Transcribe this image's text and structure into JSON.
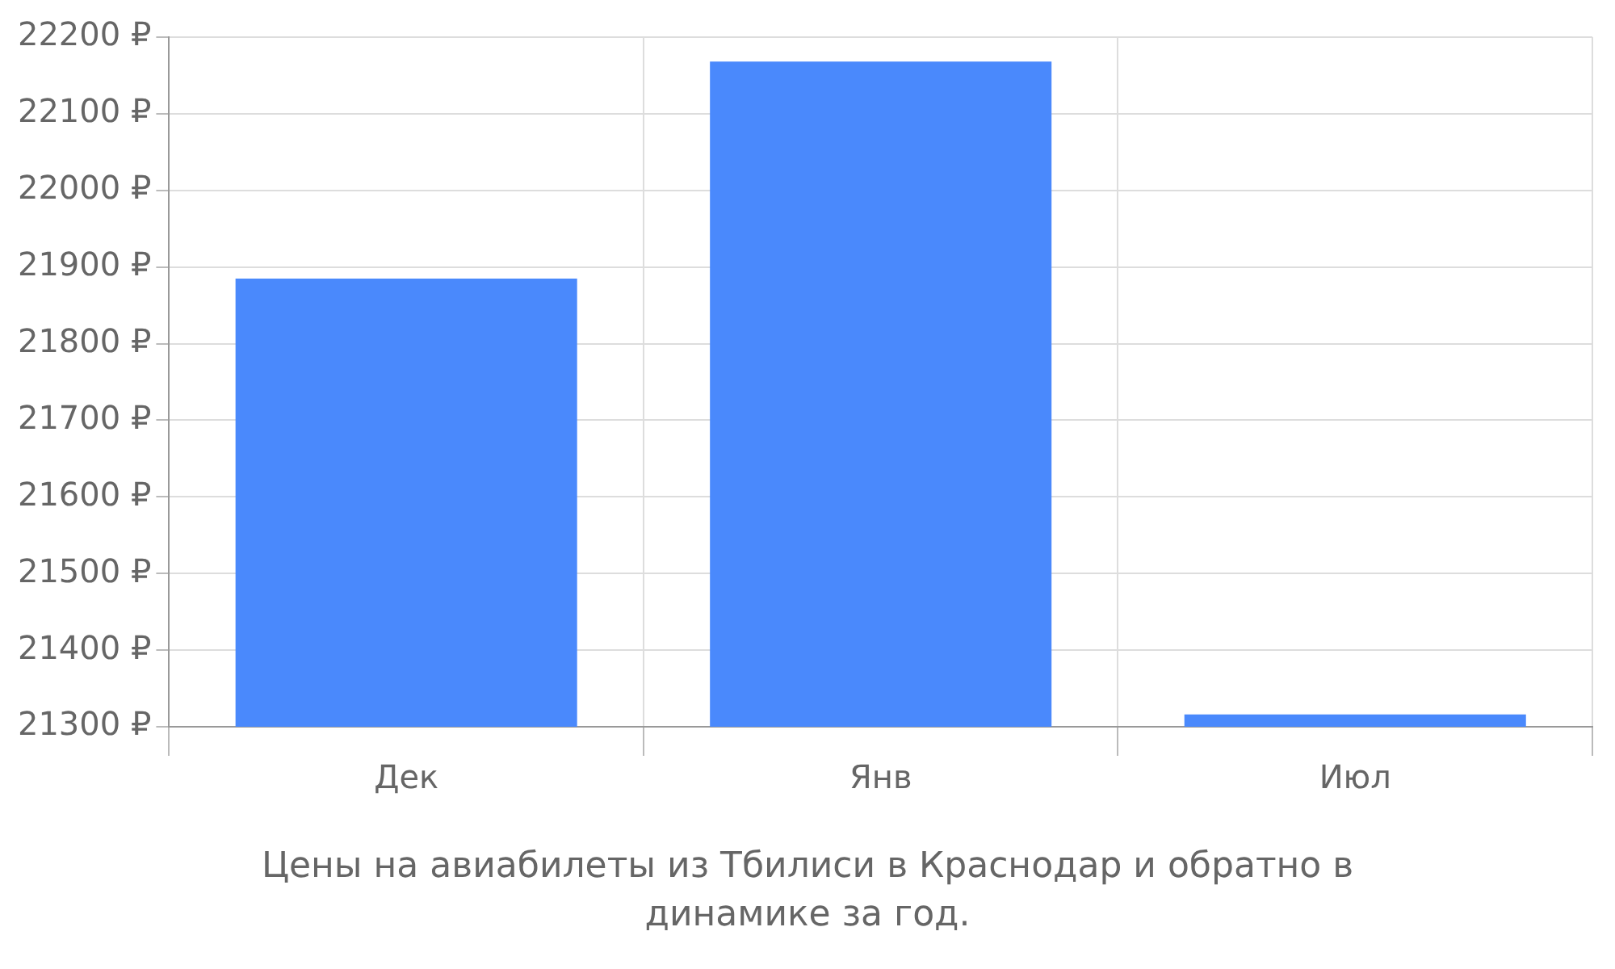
{
  "chart_data": {
    "type": "bar",
    "categories": [
      "Дек",
      "Янв",
      "Июл"
    ],
    "values": [
      21885,
      22168,
      21316
    ],
    "color": "#4a89fc",
    "ylim": [
      21300,
      22200
    ],
    "yticks": [
      {
        "value": 21300,
        "label": "21300 ₽"
      },
      {
        "value": 21400,
        "label": "21400 ₽"
      },
      {
        "value": 21500,
        "label": "21500 ₽"
      },
      {
        "value": 21600,
        "label": "21600 ₽"
      },
      {
        "value": 21700,
        "label": "21700 ₽"
      },
      {
        "value": 21800,
        "label": "21800 ₽"
      },
      {
        "value": 21900,
        "label": "21900 ₽"
      },
      {
        "value": 22000,
        "label": "22000 ₽"
      },
      {
        "value": 22100,
        "label": "22100 ₽"
      },
      {
        "value": 22200,
        "label": "22200 ₽"
      }
    ],
    "grid": true,
    "legend": false,
    "annotations": [
      "Цены на авиабилеты из Тбилиси в Краснодар и обратно в динамике за год."
    ]
  }
}
